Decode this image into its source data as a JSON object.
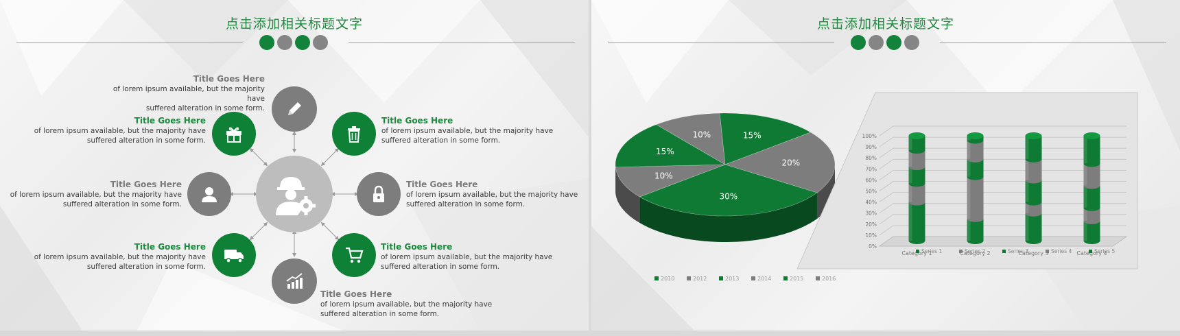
{
  "slide1": {
    "title": "点击添加相关标题文字",
    "items": [
      {
        "heading": "Title Goes Here",
        "body1": "of lorem ipsum available, but the majority have",
        "body2": "suffered alteration in some form.",
        "icon": "pencil-icon"
      },
      {
        "heading": "Title Goes Here",
        "body1": "of lorem ipsum available, but the majority have",
        "body2": "suffered alteration in some form.",
        "icon": "gift-icon"
      },
      {
        "heading": "Title Goes Here",
        "body1": "of lorem ipsum available, but the majority have",
        "body2": "suffered alteration in some form.",
        "icon": "trash-icon"
      },
      {
        "heading": "Title Goes Here",
        "body1": "of lorem ipsum available, but the majority have",
        "body2": "suffered alteration in some form.",
        "icon": "user-icon"
      },
      {
        "heading": "Title Goes Here",
        "body1": "of lorem ipsum available, but the majority have",
        "body2": "suffered alteration in some form.",
        "icon": "lock-icon"
      },
      {
        "heading": "Title Goes Here",
        "body1": "of lorem ipsum available, but the majority have",
        "body2": "suffered alteration in some form.",
        "icon": "truck-icon"
      },
      {
        "heading": "Title Goes Here",
        "body1": "of lorem ipsum available, but the majority have",
        "body2": "suffered alteration in some form.",
        "icon": "cart-icon"
      },
      {
        "heading": "Title Goes Here",
        "body1": "of lorem ipsum available, but the majority have",
        "body2": "suffered alteration in some form.",
        "icon": "growth-chart-icon"
      }
    ],
    "center_icon": "worker-gear-icon"
  },
  "slide2": {
    "title": "点击添加相关标题文字"
  },
  "colors": {
    "green": "#0f7a33",
    "grey": "#7d7d7d",
    "title_green": "#1e8a3e"
  },
  "chart_data": [
    {
      "type": "pie",
      "labels": [
        "2010",
        "2012",
        "2013",
        "2014",
        "2015",
        "2016"
      ],
      "values": [
        15,
        20,
        30,
        10,
        15,
        10
      ],
      "slice_labels": [
        "15%",
        "20%",
        "30%",
        "10%",
        "15%",
        "10%"
      ],
      "colors": [
        "#0f7a33",
        "#7d7d7d",
        "#0f7a33",
        "#7d7d7d",
        "#0f7a33",
        "#7d7d7d"
      ],
      "legend": "bottom"
    },
    {
      "type": "bar",
      "stacked": true,
      "categories": [
        "Category 1",
        "Category 2",
        "Category 3",
        "Category 4"
      ],
      "series": [
        {
          "name": "Series 1",
          "values": [
            35,
            20,
            25,
            18
          ],
          "color": "#0f7a33"
        },
        {
          "name": "Series 2",
          "values": [
            17,
            38,
            10,
            12
          ],
          "color": "#7d7d7d"
        },
        {
          "name": "Series 3",
          "values": [
            15,
            16,
            20,
            20
          ],
          "color": "#0f7a33"
        },
        {
          "name": "Series 4",
          "values": [
            15,
            17,
            19,
            20
          ],
          "color": "#7d7d7d"
        },
        {
          "name": "Series 5",
          "values": [
            13,
            4,
            21,
            25
          ],
          "color": "#0f7a33"
        }
      ],
      "ylim": [
        0,
        100
      ],
      "yticks": [
        "0%",
        "10%",
        "20%",
        "30%",
        "40%",
        "50%",
        "60%",
        "70%",
        "80%",
        "90%",
        "100%"
      ],
      "legend": "bottom",
      "grid": true
    }
  ]
}
